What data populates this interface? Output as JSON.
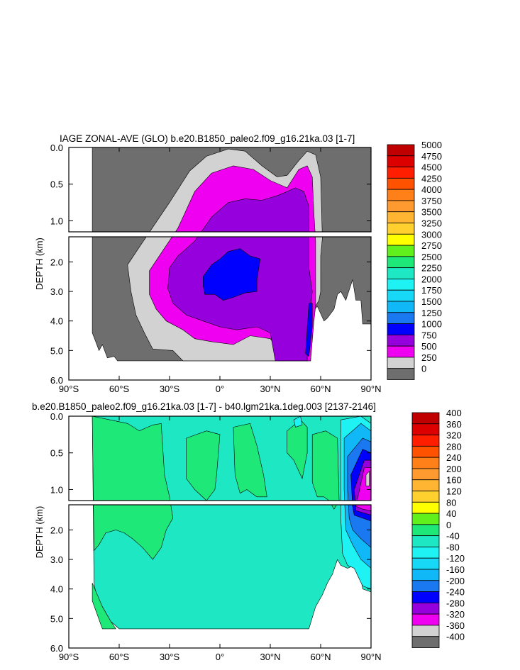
{
  "chart_data": [
    {
      "type": "heatmap",
      "title": "IAGE ZONAL-AVE (GLO) b.e20.B1850_paleo2.f09_g16.21ka.03 [1-7]",
      "ylabel": "DEPTH (km)",
      "xlabel": "",
      "x_ticks": [
        "90°S",
        "60°S",
        "30°S",
        "0°",
        "30°N",
        "60°N",
        "90°N"
      ],
      "x_tick_values": [
        -90,
        -60,
        -30,
        0,
        30,
        60,
        90
      ],
      "y_ticks_upper": [
        "0.0",
        "0.5",
        "1.0"
      ],
      "y_ticks_upper_values": [
        0,
        0.5,
        1.0
      ],
      "y_ticks_lower": [
        "2.0",
        "3.0",
        "4.0",
        "5.0",
        "6.0"
      ],
      "y_ticks_lower_values": [
        2,
        3,
        4,
        5,
        6
      ],
      "xlim": [
        -90,
        90
      ],
      "ylim": [
        6.0,
        0.0
      ],
      "depth_break_km": 1.15,
      "colorbar_labels": [
        "5000",
        "4750",
        "4500",
        "4250",
        "4000",
        "3750",
        "3500",
        "3250",
        "3000",
        "2750",
        "2500",
        "2250",
        "2000",
        "1750",
        "1500",
        "1250",
        "1000",
        "750",
        "500",
        "250",
        "0"
      ],
      "colorbar_colors": [
        "#c00000",
        "#dd0000",
        "#ff1e00",
        "#ff5200",
        "#ff7f18",
        "#ff9a30",
        "#ffb432",
        "#ffd02e",
        "#ffff00",
        "#62f01c",
        "#1ee878",
        "#1ee8c4",
        "#1ef2f2",
        "#18d8f8",
        "#10b8f8",
        "#1a78f0",
        "#0000ff",
        "#9600dc",
        "#f000f0",
        "#d2d2d2",
        "#6e6e6e"
      ],
      "field_levels": [
        {
          "name": "0-250",
          "color": "#6e6e6e",
          "extent": {
            "lat": [
              -76,
              90
            ],
            "depth_km": [
              0,
              5.35
            ]
          }
        },
        {
          "name": "250-500",
          "color": "#d2d2d2",
          "core": {
            "lat": 12,
            "depth_km": 2.6
          }
        },
        {
          "name": "500-750",
          "color": "#f000f0",
          "core": {
            "lat": 14,
            "depth_km": 2.6
          }
        },
        {
          "name": "750-1000",
          "color": "#9600dc",
          "core": {
            "lat": 15,
            "depth_km": 2.6
          }
        },
        {
          "name": "1000-1250",
          "color": "#0000ff",
          "core": {
            "lat": 8,
            "depth_km": 2.5
          }
        }
      ]
    },
    {
      "type": "heatmap",
      "title": "b.e20.B1850_paleo2.f09_g16.21ka.03 [1-7] - b40.lgm21ka.1deg.003 [2137-2146]",
      "ylabel": "DEPTH (km)",
      "xlabel": "",
      "x_ticks": [
        "90°S",
        "60°S",
        "30°S",
        "0°",
        "30°N",
        "60°N",
        "90°N"
      ],
      "x_tick_values": [
        -90,
        -60,
        -30,
        0,
        30,
        60,
        90
      ],
      "y_ticks_upper": [
        "0.0",
        "0.5",
        "1.0"
      ],
      "y_ticks_upper_values": [
        0,
        0.5,
        1.0
      ],
      "y_ticks_lower": [
        "2.0",
        "3.0",
        "4.0",
        "5.0",
        "6.0"
      ],
      "y_ticks_lower_values": [
        2,
        3,
        4,
        5,
        6
      ],
      "xlim": [
        -90,
        90
      ],
      "ylim": [
        6.0,
        0.0
      ],
      "depth_break_km": 1.15,
      "colorbar_labels": [
        "400",
        "360",
        "320",
        "280",
        "240",
        "200",
        "160",
        "120",
        "80",
        "40",
        "0",
        "-40",
        "-80",
        "-120",
        "-160",
        "-200",
        "-240",
        "-280",
        "-320",
        "-360",
        "-400"
      ],
      "colorbar_colors": [
        "#c00000",
        "#dd0000",
        "#ff1e00",
        "#ff5200",
        "#ff7f18",
        "#ff9a30",
        "#ffb432",
        "#ffd02e",
        "#ffff00",
        "#62f01c",
        "#1ee878",
        "#1ee8c4",
        "#1ef2f2",
        "#18d8f8",
        "#10b8f8",
        "#1a78f0",
        "#0000ff",
        "#9600dc",
        "#f000f0",
        "#d2d2d2",
        "#6e6e6e"
      ],
      "field_levels": [
        {
          "name": "-40-0",
          "color": "#1ee8c4",
          "extent": {
            "lat": [
              -76,
              90
            ],
            "depth_km": [
              0,
              5.35
            ]
          }
        },
        {
          "name": "0-40",
          "color": "#1ee878"
        },
        {
          "name": "-80--40",
          "color": "#1ef2f2"
        },
        {
          "name": "-120 to -200",
          "color": "#10b8f8"
        },
        {
          "name": "-280--320",
          "color": "#f000f0",
          "core": {
            "lat": 87,
            "depth_km": 0.8
          }
        }
      ]
    }
  ]
}
